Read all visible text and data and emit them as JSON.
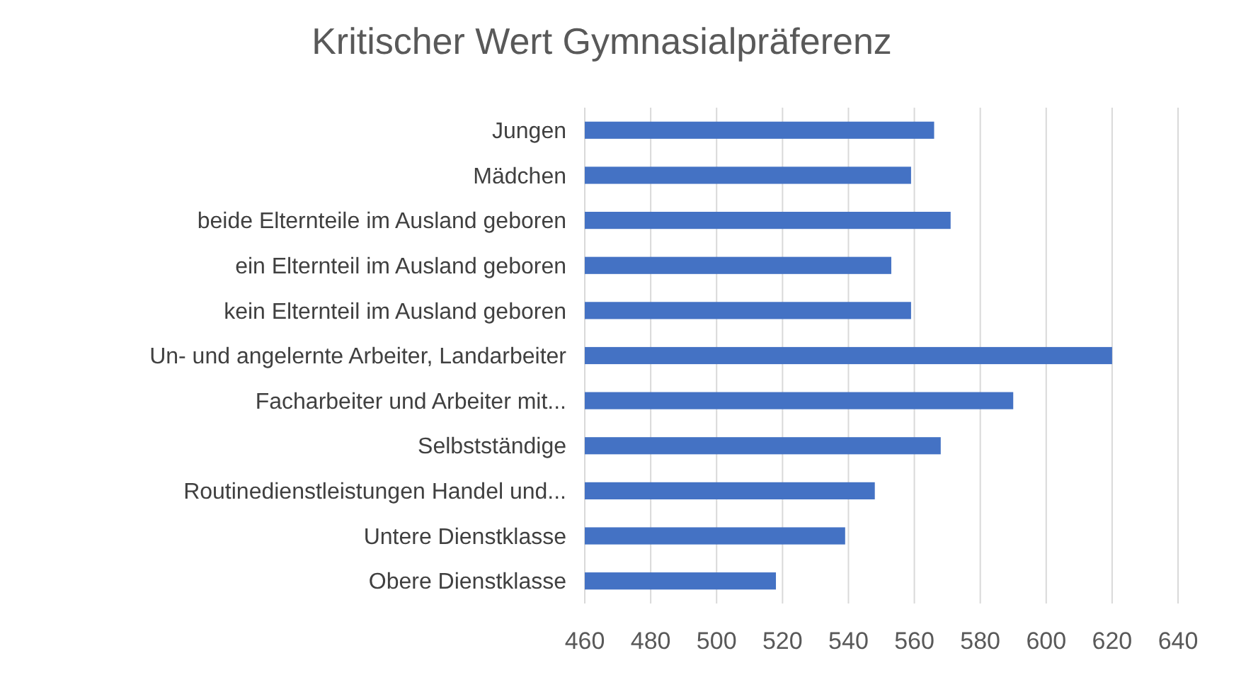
{
  "chart_data": {
    "type": "bar",
    "orientation": "horizontal",
    "title": "Kritischer Wert Gymnasialpräferenz",
    "categories": [
      "Jungen",
      "Mädchen",
      "beide Elternteile im Ausland geboren",
      "ein Elternteil im Ausland geboren",
      "kein Elternteil im Ausland geboren",
      "Un- und angelernte Arbeiter, Landarbeiter",
      "Facharbeiter und Arbeiter mit...",
      "Selbstständige",
      "Routinedienstleistungen Handel und...",
      "Untere Dienstklasse",
      "Obere Dienstklasse"
    ],
    "values": [
      566,
      559,
      571,
      553,
      559,
      620,
      590,
      568,
      548,
      539,
      518
    ],
    "color": "#4472c4",
    "xlim": [
      460,
      640
    ],
    "xticks": [
      460,
      480,
      500,
      520,
      540,
      560,
      580,
      600,
      620,
      640
    ],
    "grid": "x"
  }
}
